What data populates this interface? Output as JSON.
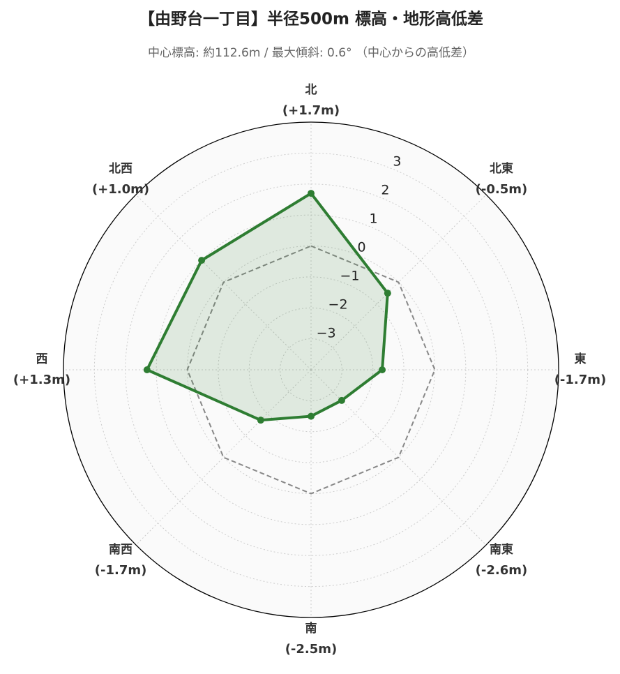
{
  "chart_data": {
    "type": "radar",
    "title": "【由野台一丁目】半径500m 標高・地形高低差",
    "subtitle": "中心標高: 約112.6m / 最大傾斜: 0.6° （中心からの高低差）",
    "categories": [
      "北",
      "北東",
      "東",
      "南東",
      "南",
      "南西",
      "西",
      "北西"
    ],
    "values": [
      1.7,
      -0.5,
      -1.7,
      -2.6,
      -2.5,
      -1.7,
      1.3,
      1.0
    ],
    "value_labels": [
      "(+1.7m)",
      "(-0.5m)",
      "(-1.7m)",
      "(-2.6m)",
      "(-2.5m)",
      "(-1.7m)",
      "(+1.3m)",
      "(+1.0m)"
    ],
    "color": "#2e7d32",
    "reference_value": 0,
    "ylim": [
      -4,
      4
    ],
    "yticks": [
      {
        "value": -3,
        "label": "−3"
      },
      {
        "value": -2,
        "label": "−2"
      },
      {
        "value": -1,
        "label": "−1"
      },
      0,
      1,
      2,
      3
    ],
    "grid": true
  }
}
